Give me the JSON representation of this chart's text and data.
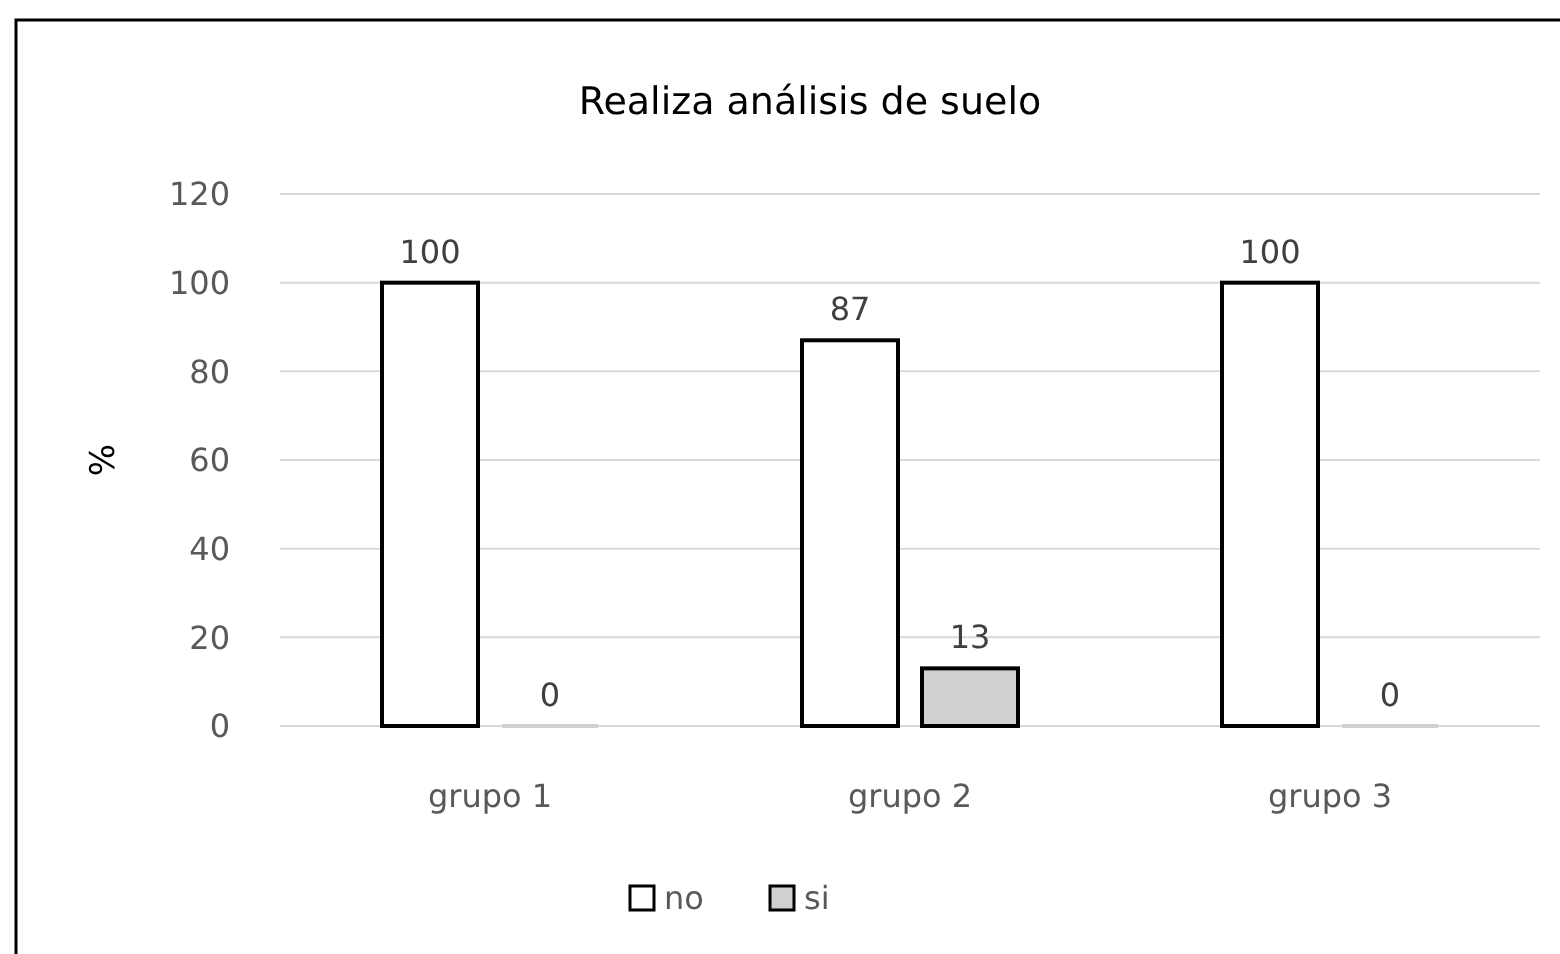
{
  "chart_data": {
    "type": "bar",
    "title": "Realiza análisis de suelo",
    "ylabel": "%",
    "categories": [
      "grupo 1",
      "grupo 2",
      "grupo 3"
    ],
    "series": [
      {
        "name": "no",
        "color": "#ffffff",
        "values": [
          100,
          87,
          100
        ]
      },
      {
        "name": "si",
        "color": "#d0d0d0",
        "values": [
          0,
          13,
          0
        ]
      }
    ],
    "ylim": [
      0,
      120
    ],
    "yticks": [
      0,
      20,
      40,
      60,
      80,
      100,
      120
    ],
    "grid": "y",
    "legend": "bottom",
    "data_labels": true
  }
}
